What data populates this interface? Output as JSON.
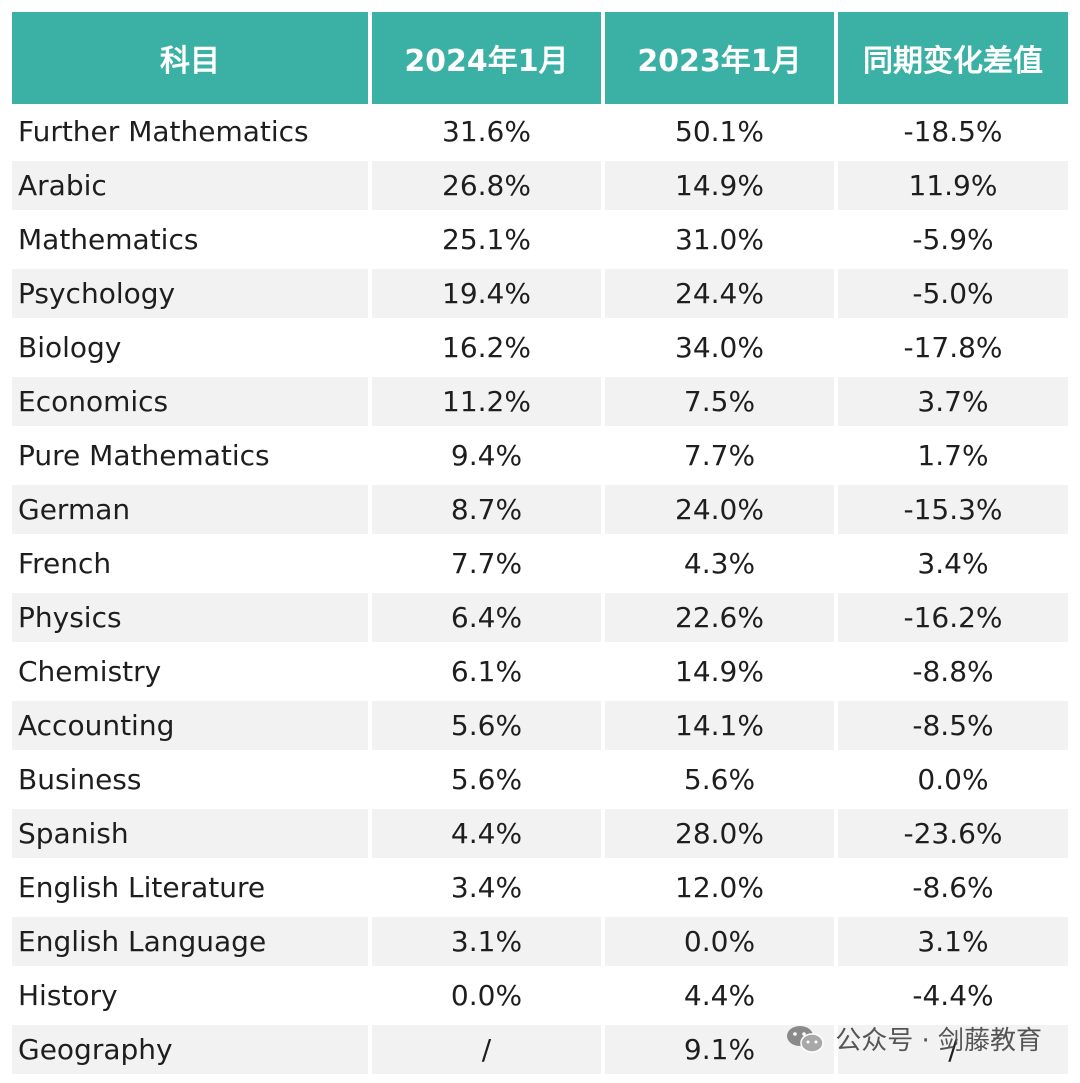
{
  "header": {
    "subject": "科目",
    "jan2024": "2024年1月",
    "jan2023": "2023年1月",
    "change": "同期变化差值"
  },
  "colors": {
    "header_bg": "#3bb0a4",
    "stripe": "#f2f2f2",
    "text": "#1e1e1e"
  },
  "rows": [
    {
      "subject": "Further Mathematics",
      "jan2024": "31.6%",
      "jan2023": "50.1%",
      "change": "-18.5%"
    },
    {
      "subject": "Arabic",
      "jan2024": "26.8%",
      "jan2023": "14.9%",
      "change": "11.9%"
    },
    {
      "subject": "Mathematics",
      "jan2024": "25.1%",
      "jan2023": "31.0%",
      "change": "-5.9%"
    },
    {
      "subject": "Psychology",
      "jan2024": "19.4%",
      "jan2023": "24.4%",
      "change": "-5.0%"
    },
    {
      "subject": "Biology",
      "jan2024": "16.2%",
      "jan2023": "34.0%",
      "change": "-17.8%"
    },
    {
      "subject": "Economics",
      "jan2024": "11.2%",
      "jan2023": "7.5%",
      "change": "3.7%"
    },
    {
      "subject": "Pure Mathematics",
      "jan2024": "9.4%",
      "jan2023": "7.7%",
      "change": "1.7%"
    },
    {
      "subject": "German",
      "jan2024": "8.7%",
      "jan2023": "24.0%",
      "change": "-15.3%"
    },
    {
      "subject": "French",
      "jan2024": "7.7%",
      "jan2023": "4.3%",
      "change": "3.4%"
    },
    {
      "subject": "Physics",
      "jan2024": "6.4%",
      "jan2023": "22.6%",
      "change": "-16.2%"
    },
    {
      "subject": "Chemistry",
      "jan2024": "6.1%",
      "jan2023": "14.9%",
      "change": "-8.8%"
    },
    {
      "subject": "Accounting",
      "jan2024": "5.6%",
      "jan2023": "14.1%",
      "change": "-8.5%"
    },
    {
      "subject": "Business",
      "jan2024": "5.6%",
      "jan2023": "5.6%",
      "change": "0.0%"
    },
    {
      "subject": "Spanish",
      "jan2024": "4.4%",
      "jan2023": "28.0%",
      "change": "-23.6%"
    },
    {
      "subject": "English Literature",
      "jan2024": "3.4%",
      "jan2023": "12.0%",
      "change": "-8.6%"
    },
    {
      "subject": "English Language",
      "jan2024": "3.1%",
      "jan2023": "0.0%",
      "change": "3.1%"
    },
    {
      "subject": "History",
      "jan2024": "0.0%",
      "jan2023": "4.4%",
      "change": "-4.4%"
    },
    {
      "subject": "Geography",
      "jan2024": "/",
      "jan2023": "9.1%",
      "change": "/"
    }
  ],
  "watermark": {
    "icon": "wechat-icon",
    "text": "公众号 · 剑藤教育"
  }
}
